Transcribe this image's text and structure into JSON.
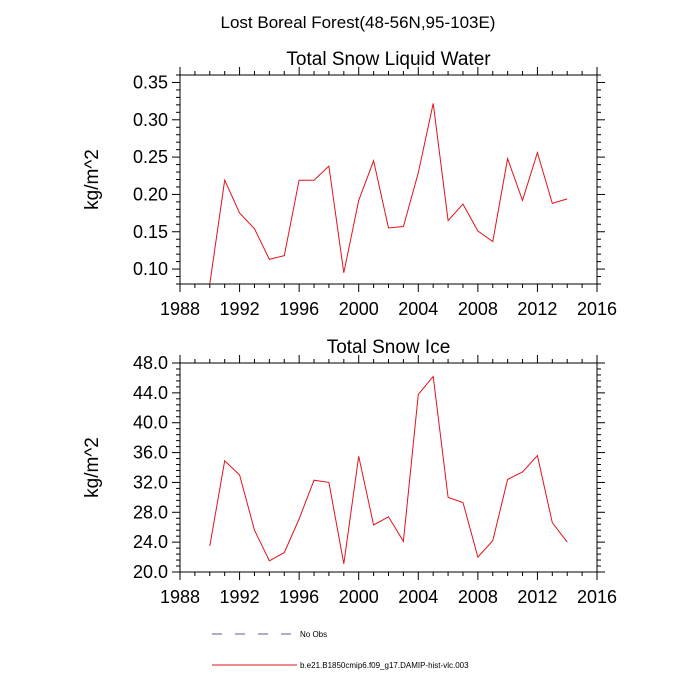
{
  "figure": {
    "title": "Lost Boreal Forest(48-56N,95-103E)"
  },
  "legend": {
    "entries": [
      {
        "label": "No Obs",
        "color": "#5a5aa8",
        "style": "dashed"
      },
      {
        "label": "b.e21.B1850cmip6.f09_g17.DAMIP-hist-vlc.003",
        "color": "#e0141e",
        "style": "solid"
      }
    ]
  },
  "chart_data": [
    {
      "type": "line",
      "title": "Total Snow Liquid Water",
      "ylabel": "kg/m^2",
      "xlabel": "",
      "xlim": [
        1988,
        2016
      ],
      "ylim": [
        0.08,
        0.36
      ],
      "xticks": [
        1988,
        1992,
        1996,
        2000,
        2004,
        2008,
        2012,
        2016
      ],
      "yticks": [
        0.1,
        0.15,
        0.2,
        0.25,
        0.3,
        0.35
      ],
      "ytick_labels": [
        "0.10",
        "0.15",
        "0.20",
        "0.25",
        "0.30",
        "0.35"
      ],
      "grid": false,
      "series": [
        {
          "color": "#e0141e",
          "x": [
            1990,
            1991,
            1992,
            1993,
            1994,
            1995,
            1996,
            1997,
            1998,
            1999,
            2000,
            2001,
            2002,
            2003,
            2004,
            2005,
            2006,
            2007,
            2008,
            2009,
            2010,
            2011,
            2012,
            2013,
            2014
          ],
          "y": [
            0.08,
            0.219,
            0.175,
            0.154,
            0.113,
            0.118,
            0.219,
            0.219,
            0.238,
            0.095,
            0.192,
            0.245,
            0.155,
            0.157,
            0.229,
            0.322,
            0.165,
            0.187,
            0.151,
            0.137,
            0.248,
            0.192,
            0.256,
            0.188,
            0.194
          ]
        }
      ]
    },
    {
      "type": "line",
      "title": "Total Snow Ice",
      "ylabel": "kg/m^2",
      "xlabel": "",
      "xlim": [
        1988,
        2016
      ],
      "ylim": [
        20.0,
        48.0
      ],
      "xticks": [
        1988,
        1992,
        1996,
        2000,
        2004,
        2008,
        2012,
        2016
      ],
      "yticks": [
        20,
        24,
        28,
        32,
        36,
        40,
        44,
        48
      ],
      "ytick_labels": [
        "20.0",
        "24.0",
        "28.0",
        "32.0",
        "36.0",
        "40.0",
        "44.0",
        "48.0"
      ],
      "grid": false,
      "series": [
        {
          "color": "#e0141e",
          "x": [
            1990,
            1991,
            1992,
            1993,
            1994,
            1995,
            1996,
            1997,
            1998,
            1999,
            2000,
            2001,
            2002,
            2003,
            2004,
            2005,
            2006,
            2007,
            2008,
            2009,
            2010,
            2011,
            2012,
            2013,
            2014
          ],
          "y": [
            23.5,
            34.9,
            33.0,
            25.6,
            21.5,
            22.6,
            27.1,
            32.3,
            32.0,
            21.1,
            35.5,
            26.3,
            27.4,
            24.1,
            43.8,
            46.2,
            30.0,
            29.3,
            22.0,
            24.2,
            32.4,
            33.4,
            35.6,
            26.6,
            24.0
          ]
        }
      ]
    }
  ]
}
